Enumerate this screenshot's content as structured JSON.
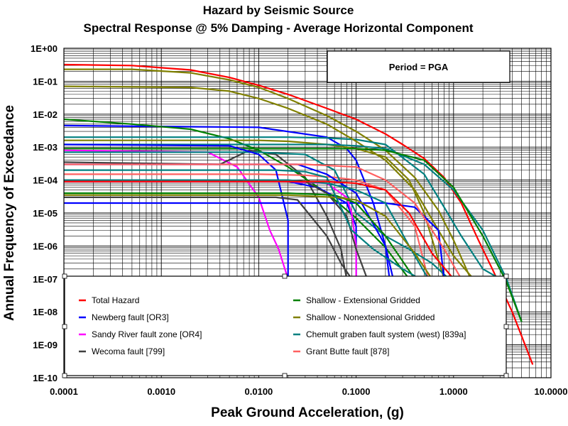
{
  "chart_data": {
    "type": "line",
    "title": "Hazard by Seismic Source",
    "subtitle": "Spectral Response @ 5% Damping - Average Horizontal Component",
    "xlabel": "Peak Ground Acceleration, (g)",
    "ylabel": "Annual Frequency of Exceedance",
    "x_scale": "log",
    "y_scale": "log",
    "xlim": [
      0.0001,
      10
    ],
    "ylim": [
      1e-10,
      1
    ],
    "grid": true,
    "legend_position": "bottom-center",
    "annotation": "Period = PGA",
    "x_ticks": [
      "0.0001",
      "0.0010",
      "0.0100",
      "0.1000",
      "1.0000",
      "10.0000"
    ],
    "y_ticks": [
      "1E+00",
      "1E-01",
      "1E-02",
      "1E-03",
      "1E-04",
      "1E-05",
      "1E-06",
      "1E-07",
      "1E-08",
      "1E-09",
      "1E-10"
    ],
    "series": [
      {
        "name": "Total Hazard",
        "color": "#ff0000",
        "in_legend": true,
        "x": [
          0.0001,
          0.0005,
          0.002,
          0.005,
          0.01,
          0.02,
          0.05,
          0.1,
          0.2,
          0.3,
          0.5,
          0.8,
          1.2,
          1.8,
          2.5,
          4,
          6.5
        ],
        "y": [
          0.32,
          0.3,
          0.22,
          0.13,
          0.075,
          0.04,
          0.015,
          0.007,
          0.0025,
          0.0012,
          0.00045,
          0.00012,
          2e-05,
          1.5e-06,
          2e-07,
          1e-08,
          2.5e-10
        ]
      },
      {
        "name": "Newberg fault [OR3]",
        "color": "#0000ff",
        "in_legend": true,
        "x": [
          0.0001,
          0.01,
          0.05,
          0.08,
          0.1,
          0.15,
          0.2,
          0.22
        ],
        "y": [
          0.0045,
          0.004,
          0.002,
          0.0009,
          0.0004,
          2e-05,
          1e-06,
          1e-07
        ]
      },
      {
        "name": "Sandy River fault zone [OR4]",
        "color": "#ff00ff",
        "in_legend": true,
        "x": [
          0.0001,
          0.003,
          0.006,
          0.01,
          0.013,
          0.016,
          0.02
        ],
        "y": [
          0.0008,
          0.0007,
          0.00025,
          3e-05,
          3e-06,
          8e-07,
          1e-07
        ]
      },
      {
        "name": "Wecoma fault [799]",
        "color": "#404040",
        "in_legend": true,
        "x": [
          0.0001,
          0.004,
          0.008,
          0.015,
          0.03,
          0.05,
          0.07,
          0.08
        ],
        "y": [
          0.00035,
          0.0003,
          0.0008,
          0.0006,
          0.00012,
          8e-06,
          8e-07,
          1e-07
        ]
      },
      {
        "name": "Shallow - Extensional Gridded",
        "color": "#008000",
        "in_legend": true,
        "x": [
          0.0001,
          0.0005,
          0.002,
          0.005,
          0.01,
          0.02,
          0.05,
          0.1,
          0.2,
          0.35
        ],
        "y": [
          0.007,
          0.005,
          0.0035,
          0.0018,
          0.0008,
          0.00025,
          4e-05,
          7e-06,
          9e-07,
          1e-07
        ]
      },
      {
        "name": "Shallow - Nonextensional Gridded",
        "color": "#808000",
        "in_legend": true,
        "x": [
          0.0001,
          0.0005,
          0.002,
          0.005,
          0.01,
          0.02,
          0.05,
          0.1,
          0.2,
          0.4,
          0.7,
          1.0,
          1.5
        ],
        "y": [
          0.23,
          0.23,
          0.18,
          0.11,
          0.065,
          0.03,
          0.009,
          0.003,
          0.0008,
          0.00012,
          1.2e-05,
          1.5e-06,
          1e-07
        ]
      },
      {
        "name": "Chemult graben fault system (west) [839a]",
        "color": "#008080",
        "in_legend": true,
        "x": [
          0.0001,
          0.02,
          0.05,
          0.1,
          0.2,
          0.5,
          0.8,
          1.2,
          2.0,
          3.0
        ],
        "y": [
          0.002,
          0.002,
          0.0019,
          0.0017,
          0.0012,
          0.00015,
          1.5e-05,
          2e-06,
          2e-07,
          1e-07
        ]
      },
      {
        "name": "Grant Butte fault [878]",
        "color": "#ff6060",
        "in_legend": true,
        "x": [
          0.0001,
          0.01,
          0.03,
          0.06,
          0.1,
          0.2,
          0.4,
          0.55,
          0.6
        ],
        "y": [
          0.00015,
          0.00015,
          0.00014,
          0.00012,
          0.0001,
          5e-05,
          4e-06,
          1e-07,
          1e-07
        ]
      },
      {
        "name": "",
        "color": "#808000",
        "in_legend": false,
        "x": [
          0.0001,
          0.002,
          0.005,
          0.01,
          0.02,
          0.05,
          0.1,
          0.2,
          0.4,
          0.7,
          1.0,
          1.6
        ],
        "y": [
          0.07,
          0.065,
          0.05,
          0.03,
          0.015,
          0.005,
          0.0015,
          0.0004,
          5e-05,
          3e-06,
          5e-07,
          1e-07
        ]
      },
      {
        "name": "",
        "color": "#808000",
        "in_legend": false,
        "x": [
          0.0001,
          0.005,
          0.01,
          0.02,
          0.05,
          0.1,
          0.2,
          0.35,
          0.5,
          0.8
        ],
        "y": [
          0.0016,
          0.0016,
          0.0016,
          0.0015,
          0.0012,
          0.0009,
          0.0005,
          0.0001,
          1e-05,
          1e-07
        ]
      },
      {
        "name": "",
        "color": "#008080",
        "in_legend": false,
        "x": [
          0.0001,
          0.005,
          0.02,
          0.05,
          0.1,
          0.2,
          0.5,
          1.0,
          2.0,
          3.5,
          5.0
        ],
        "y": [
          0.0012,
          0.0012,
          0.0012,
          0.0012,
          0.0011,
          0.0009,
          0.0003,
          5e-05,
          3e-06,
          1e-07,
          5e-09
        ]
      },
      {
        "name": "",
        "color": "#008000",
        "in_legend": false,
        "x": [
          0.0001,
          0.01,
          0.05,
          0.1,
          0.2,
          0.5,
          1.0,
          2.0,
          3.5,
          5.0
        ],
        "y": [
          0.0009,
          0.0009,
          0.0009,
          0.0009,
          0.0008,
          0.0004,
          6e-05,
          2e-06,
          8e-08,
          5e-09
        ]
      },
      {
        "name": "",
        "color": "#008080",
        "in_legend": false,
        "x": [
          0.0001,
          0.01,
          0.03,
          0.06,
          0.1,
          0.2,
          0.35,
          0.6,
          0.9
        ],
        "y": [
          0.0007,
          0.0007,
          0.0006,
          0.0002,
          1e-05,
          2e-06,
          8e-07,
          3e-07,
          1e-07
        ]
      },
      {
        "name": "",
        "color": "#0000ff",
        "in_legend": false,
        "x": [
          0.0001,
          0.005,
          0.01,
          0.015,
          0.02,
          0.02
        ],
        "y": [
          0.0012,
          0.0011,
          0.0006,
          0.0002,
          6e-06,
          1e-07
        ]
      },
      {
        "name": "",
        "color": "#0000ff",
        "in_legend": false,
        "x": [
          0.0001,
          0.01,
          0.02,
          0.04,
          0.08,
          0.1,
          0.1
        ],
        "y": [
          0.0001,
          0.0001,
          9e-05,
          6e-05,
          2e-05,
          4e-06,
          1e-07
        ]
      },
      {
        "name": "",
        "color": "#0000ff",
        "in_legend": false,
        "x": [
          0.0001,
          0.1,
          0.2,
          0.4,
          0.7,
          0.8
        ],
        "y": [
          2e-05,
          2e-05,
          2e-05,
          1.5e-05,
          3e-06,
          1e-07
        ]
      },
      {
        "name": "",
        "color": "#0000ff",
        "in_legend": false,
        "x": [
          0.0001,
          0.01,
          0.025,
          0.05,
          0.1,
          0.2,
          0.24
        ],
        "y": [
          0.0003,
          0.0003,
          0.0003,
          0.00015,
          4e-05,
          1e-06,
          1e-07
        ]
      },
      {
        "name": "",
        "color": "#ff00ff",
        "in_legend": false,
        "x": [
          0.0001,
          0.02,
          0.05,
          0.08,
          0.09,
          0.1,
          0.1
        ],
        "y": [
          9e-05,
          9e-05,
          8e-05,
          3e-05,
          1e-05,
          1e-06,
          1e-07
        ]
      },
      {
        "name": "",
        "color": "#404040",
        "in_legend": false,
        "x": [
          0.0001,
          0.015,
          0.025,
          0.05,
          0.07,
          0.09
        ],
        "y": [
          3e-05,
          3e-05,
          2.5e-05,
          2e-06,
          3e-07,
          1e-07
        ]
      },
      {
        "name": "",
        "color": "#404040",
        "in_legend": false,
        "x": [
          0.0001,
          0.03,
          0.05,
          0.08,
          0.1,
          0.13
        ],
        "y": [
          0.0001,
          9e-05,
          4e-05,
          8e-06,
          8e-07,
          1e-07
        ]
      },
      {
        "name": "",
        "color": "#008080",
        "in_legend": false,
        "x": [
          0.0001,
          0.02,
          0.05,
          0.1,
          0.2,
          0.35,
          0.55
        ],
        "y": [
          0.0001,
          0.0001,
          8e-05,
          5e-05,
          2e-05,
          1e-06,
          1e-07
        ]
      },
      {
        "name": "",
        "color": "#008000",
        "in_legend": false,
        "x": [
          0.0001,
          0.02,
          0.06,
          0.1,
          0.2,
          0.4
        ],
        "y": [
          4e-05,
          4e-05,
          3.5e-05,
          2e-05,
          2e-06,
          1e-07
        ]
      },
      {
        "name": "",
        "color": "#808000",
        "in_legend": false,
        "x": [
          0.0001,
          0.02,
          0.06,
          0.1,
          0.2,
          0.4,
          0.6
        ],
        "y": [
          3.5e-05,
          3.5e-05,
          3e-05,
          2.5e-05,
          8e-06,
          6e-07,
          1e-07
        ]
      },
      {
        "name": "",
        "color": "#008080",
        "in_legend": false,
        "x": [
          0.0001,
          0.015,
          0.03,
          0.05,
          0.09,
          0.15,
          0.3,
          0.45
        ],
        "y": [
          0.0002,
          0.0002,
          0.00018,
          0.00012,
          3e-06,
          8e-07,
          2e-07,
          1e-07
        ]
      },
      {
        "name": "",
        "color": "#ff6060",
        "in_legend": false,
        "x": [
          0.0001,
          0.03,
          0.1,
          0.2,
          0.4,
          0.8,
          1.2
        ],
        "y": [
          0.0003,
          0.0003,
          0.00025,
          0.0001,
          2e-05,
          8e-07,
          1e-07
        ]
      },
      {
        "name": "",
        "color": "#ff0000",
        "in_legend": false,
        "x": [
          0.0001,
          0.05,
          0.1,
          0.2,
          0.35,
          0.6,
          1.0
        ],
        "y": [
          9e-05,
          9e-05,
          8e-05,
          5e-05,
          1e-05,
          6e-07,
          1e-07
        ]
      }
    ]
  }
}
